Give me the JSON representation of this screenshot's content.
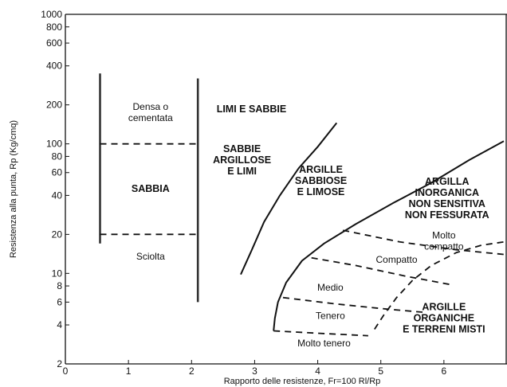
{
  "chart_data": {
    "type": "scatter",
    "xlabel": "Rapporto delle resistenze, Fr=100 Rl/Rp",
    "ylabel": "Resistenza alla punta, Rp (Kg/cmq)",
    "xlim": [
      0,
      7
    ],
    "ylim": [
      2,
      1000
    ],
    "y_scale": "log",
    "x_ticks": [
      "0",
      "1",
      "2",
      "3",
      "4",
      "5",
      "6"
    ],
    "y_ticks": [
      {
        "value": 2,
        "label": "2"
      },
      {
        "value": 4,
        "label": "4"
      },
      {
        "value": 6,
        "label": "6"
      },
      {
        "value": 8,
        "label": "8"
      },
      {
        "value": 10,
        "label": "10"
      },
      {
        "value": 20,
        "label": "20"
      },
      {
        "value": 40,
        "label": "40"
      },
      {
        "value": 60,
        "label": "60"
      },
      {
        "value": 80,
        "label": "80"
      },
      {
        "value": 100,
        "label": "100"
      },
      {
        "value": 200,
        "label": "200"
      },
      {
        "value": 400,
        "label": "400"
      },
      {
        "value": 600,
        "label": "600"
      },
      {
        "value": 800,
        "label": "800"
      },
      {
        "value": 1000,
        "label": "1000"
      }
    ],
    "boundaries": [
      {
        "id": "bar-left",
        "style": "bar",
        "points": [
          [
            0.55,
            17
          ],
          [
            0.55,
            350
          ]
        ]
      },
      {
        "id": "bar-right",
        "style": "bar",
        "points": [
          [
            2.1,
            6
          ],
          [
            2.1,
            320
          ]
        ]
      },
      {
        "id": "dash-sabbia-top",
        "style": "dash",
        "points": [
          [
            0.55,
            100
          ],
          [
            2.1,
            100
          ]
        ]
      },
      {
        "id": "dash-sabbia-bottom",
        "style": "dash",
        "points": [
          [
            0.55,
            20
          ],
          [
            2.1,
            20
          ]
        ]
      },
      {
        "id": "curve-limi-argille",
        "style": "solid",
        "points": [
          [
            2.78,
            9.8
          ],
          [
            2.95,
            15
          ],
          [
            3.15,
            25
          ],
          [
            3.4,
            40
          ],
          [
            3.7,
            65
          ],
          [
            4.0,
            95
          ],
          [
            4.3,
            145
          ]
        ]
      },
      {
        "id": "curve-argilla-inorganica",
        "style": "solid",
        "points": [
          [
            3.3,
            3.6
          ],
          [
            3.32,
            4.5
          ],
          [
            3.37,
            6
          ],
          [
            3.5,
            8.5
          ],
          [
            3.75,
            12.5
          ],
          [
            4.1,
            17
          ],
          [
            4.6,
            24
          ],
          [
            5.2,
            35
          ],
          [
            5.8,
            50
          ],
          [
            6.4,
            75
          ],
          [
            6.95,
            105
          ]
        ]
      },
      {
        "id": "dash-sinuous",
        "style": "dash",
        "points": [
          [
            4.9,
            3.7
          ],
          [
            5.05,
            4.8
          ],
          [
            5.25,
            6.5
          ],
          [
            5.5,
            8.8
          ],
          [
            5.8,
            11.5
          ],
          [
            6.2,
            14.5
          ],
          [
            6.6,
            16.5
          ],
          [
            6.95,
            17.5
          ]
        ]
      },
      {
        "id": "dash-molto-compatto",
        "style": "dash",
        "points": [
          [
            4.4,
            21.5
          ],
          [
            5.3,
            17.5
          ],
          [
            6.2,
            15.2
          ],
          [
            6.95,
            14
          ]
        ]
      },
      {
        "id": "dash-compatto-medio",
        "style": "dash",
        "points": [
          [
            3.9,
            13.2
          ],
          [
            4.6,
            11.5
          ],
          [
            5.4,
            9.5
          ],
          [
            6.1,
            8.2
          ]
        ]
      },
      {
        "id": "dash-medio-tenero",
        "style": "dash",
        "points": [
          [
            3.45,
            6.5
          ],
          [
            4.3,
            5.8
          ],
          [
            5.1,
            5.3
          ],
          [
            5.7,
            5.0
          ]
        ]
      },
      {
        "id": "dash-tenero-moltotenero",
        "style": "dash",
        "points": [
          [
            3.3,
            3.6
          ],
          [
            4.0,
            3.45
          ],
          [
            4.8,
            3.3
          ]
        ]
      }
    ],
    "region_labels": [
      {
        "lines": [
          "Densa o",
          "cementata"
        ],
        "x": 1.35,
        "y": 175,
        "weight": "normal"
      },
      {
        "lines": [
          "LIMI E SABBIE"
        ],
        "x": 2.95,
        "y": 185,
        "weight": "bold"
      },
      {
        "lines": [
          "SABBIA"
        ],
        "x": 1.35,
        "y": 45,
        "weight": "bold"
      },
      {
        "lines": [
          "SABBIE",
          "ARGILLOSE",
          "E LIMI"
        ],
        "x": 2.8,
        "y": 75,
        "weight": "bold"
      },
      {
        "lines": [
          "ARGILLE",
          "SABBIOSE",
          "E LIMOSE"
        ],
        "x": 4.05,
        "y": 52,
        "weight": "bold"
      },
      {
        "lines": [
          "ARGILLA",
          "INORGANICA",
          "NON SENSITIVA",
          "NON FESSURATA"
        ],
        "x": 6.05,
        "y": 38,
        "weight": "bold"
      },
      {
        "lines": [
          "Molto",
          "compatto"
        ],
        "x": 6.0,
        "y": 17.8,
        "weight": "normal"
      },
      {
        "lines": [
          "Sciolta"
        ],
        "x": 1.35,
        "y": 13.5,
        "weight": "normal"
      },
      {
        "lines": [
          "Compatto"
        ],
        "x": 5.25,
        "y": 12.8,
        "weight": "normal"
      },
      {
        "lines": [
          "Medio"
        ],
        "x": 4.2,
        "y": 7.8,
        "weight": "normal"
      },
      {
        "lines": [
          "Tenero"
        ],
        "x": 4.2,
        "y": 4.7,
        "weight": "normal"
      },
      {
        "lines": [
          "ARGILLE",
          "ORGANICHE",
          "E TERRENI MISTI"
        ],
        "x": 6.0,
        "y": 4.5,
        "weight": "bold"
      },
      {
        "lines": [
          "Molto tenero"
        ],
        "x": 4.1,
        "y": 2.9,
        "weight": "normal"
      }
    ]
  }
}
